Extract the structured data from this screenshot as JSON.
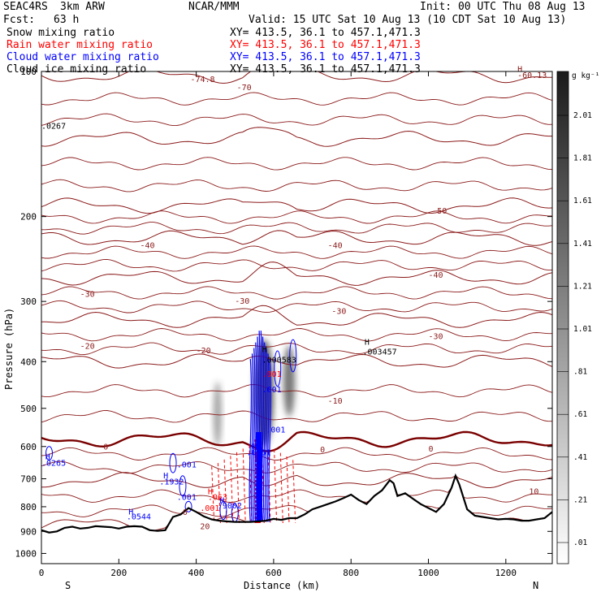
{
  "header": {
    "project": "SEAC4RS",
    "model": "3km ARW",
    "center": "NCAR/MMM",
    "init": "Init: 00 UTC Thu 08 Aug 13",
    "fcst_label": "Fcst:",
    "fcst_value": "63 h",
    "valid": "Valid: 15 UTC Sat 10 Aug 13 (10 CDT Sat 10 Aug 13)"
  },
  "fields": [
    {
      "name": "Snow mixing ratio",
      "xy": "XY= 413.5, 36.1 to 457.1,471.3",
      "color": "#000000"
    },
    {
      "name": "Rain water mixing ratio",
      "xy": "XY= 413.5, 36.1 to 457.1,471.3",
      "color": "#ff0000"
    },
    {
      "name": "Cloud water mixing ratio",
      "xy": "XY= 413.5, 36.1 to 457.1,471.3",
      "color": "#0000ff"
    },
    {
      "name": "Cloud ice mixing ratio",
      "xy": "XY= 413.5, 36.1 to 457.1,471.3",
      "color": "#000000"
    }
  ],
  "colorbar": {
    "unit": "g kg⁻¹",
    "ticks": [
      "2.01",
      "1.81",
      "1.61",
      "1.41",
      "1.21",
      "1.01",
      ".81",
      ".61",
      ".41",
      ".21",
      ".01"
    ]
  },
  "chart_data": {
    "type": "cross-section",
    "xlabel": "Distance (km)",
    "ylabel": "Pressure (hPa)",
    "xlim": [
      0,
      1320
    ],
    "ylim": [
      1050,
      100
    ],
    "y_scale": "log",
    "x_ticks": [
      "0",
      "200",
      "400",
      "600",
      "800",
      "1000",
      "1200"
    ],
    "x_tick_values": [
      0,
      200,
      400,
      600,
      800,
      1000,
      1200
    ],
    "y_ticks": [
      "100",
      "200",
      "300",
      "400",
      "500",
      "600",
      "700",
      "800",
      "900",
      "1000"
    ],
    "y_tick_values": [
      100,
      200,
      300,
      400,
      500,
      600,
      700,
      800,
      900,
      1000
    ],
    "end_labels": {
      "left": "S",
      "right": "N"
    },
    "temperature_colors": {
      "line": "#8b1a1a",
      "zero": "#7a0000"
    },
    "temperature_levels": [
      {
        "t": -70,
        "p": 102
      },
      {
        "t": -60,
        "p": 138
      },
      {
        "t": -50,
        "p": 190
      },
      {
        "t": -40,
        "p": 222
      },
      {
        "t": -30,
        "p": 268
      },
      {
        "t": -20,
        "p": 328
      },
      {
        "t": -10,
        "p": 400
      },
      {
        "t": 0,
        "p": 580
      },
      {
        "t": 10,
        "p": 705
      },
      {
        "t": 20,
        "p": 872
      }
    ],
    "temperature_labels": [
      {
        "text": "-74.8",
        "x": 385,
        "p": 104
      },
      {
        "text": "-70",
        "x": 505,
        "p": 108
      },
      {
        "text": "-60.13",
        "x": 1230,
        "p": 102
      },
      {
        "text": "-50",
        "x": 1010,
        "p": 195
      },
      {
        "text": "-40",
        "x": 255,
        "p": 230
      },
      {
        "text": "-40",
        "x": 740,
        "p": 230
      },
      {
        "text": "-40",
        "x": 1000,
        "p": 265
      },
      {
        "text": "-30",
        "x": 100,
        "p": 290
      },
      {
        "text": "-30",
        "x": 500,
        "p": 300
      },
      {
        "text": "-30",
        "x": 750,
        "p": 315
      },
      {
        "text": "-30",
        "x": 1000,
        "p": 355
      },
      {
        "text": "-20",
        "x": 100,
        "p": 372
      },
      {
        "text": "-20",
        "x": 400,
        "p": 380
      },
      {
        "text": "-10",
        "x": 740,
        "p": 483
      },
      {
        "text": "0",
        "x": 160,
        "p": 602
      },
      {
        "text": "0",
        "x": 720,
        "p": 610
      },
      {
        "text": "0",
        "x": 1000,
        "p": 608
      },
      {
        "text": "10",
        "x": 1260,
        "p": 745
      },
      {
        "text": "0",
        "x": 365,
        "p": 822
      },
      {
        "text": "20",
        "x": 410,
        "p": 880
      }
    ],
    "annotations": [
      {
        "text": "H",
        "x": 1230,
        "p": 99,
        "color": "#8b1a1a"
      },
      {
        "text": ".0267",
        "x": 0,
        "p": 130,
        "color": "#000000"
      },
      {
        "text": "H",
        "x": 835,
        "p": 365,
        "color": "#000000"
      },
      {
        "text": ".003457",
        "x": 830,
        "p": 382,
        "color": "#000000"
      },
      {
        "text": "H",
        "x": 570,
        "p": 378,
        "color": "#000000"
      },
      {
        "text": ".000583",
        "x": 570,
        "p": 397,
        "color": "#000000"
      },
      {
        "text": ".001",
        "x": 570,
        "p": 425,
        "color": "#ff0000"
      },
      {
        "text": ".001",
        "x": 570,
        "p": 458,
        "color": "#0000ff"
      },
      {
        "text": ".001",
        "x": 580,
        "p": 555,
        "color": "#0000ff"
      },
      {
        "text": "H",
        "x": 545,
        "p": 601,
        "color": "#0000ff"
      },
      {
        "text": ".6351",
        "x": 530,
        "p": 618,
        "color": "#0000ff"
      },
      {
        "text": "H",
        "x": 10,
        "p": 630,
        "color": "#0000ff"
      },
      {
        "text": ".0265",
        "x": 0,
        "p": 650,
        "color": "#0000ff"
      },
      {
        "text": ".001",
        "x": 350,
        "p": 655,
        "color": "#0000ff"
      },
      {
        "text": "H",
        "x": 315,
        "p": 690,
        "color": "#0000ff"
      },
      {
        "text": ".1932",
        "x": 305,
        "p": 711,
        "color": "#0000ff"
      },
      {
        "text": ".001",
        "x": 350,
        "p": 765,
        "color": "#0000ff"
      },
      {
        "text": "H",
        "x": 430,
        "p": 745,
        "color": "#ff0000"
      },
      {
        "text": ".063",
        "x": 430,
        "p": 765,
        "color": "#ff0000"
      },
      {
        "text": "H",
        "x": 460,
        "p": 778,
        "color": "#0000ff"
      },
      {
        "text": ".9002",
        "x": 455,
        "p": 797,
        "color": "#0000ff"
      },
      {
        "text": ".001",
        "x": 410,
        "p": 807,
        "color": "#ff0000"
      },
      {
        "text": "H",
        "x": 225,
        "p": 820,
        "color": "#0000ff"
      },
      {
        "text": ".0544",
        "x": 220,
        "p": 840,
        "color": "#0000ff"
      }
    ],
    "terrain": {
      "x": [
        0,
        20,
        40,
        60,
        80,
        100,
        120,
        140,
        160,
        180,
        200,
        220,
        240,
        260,
        280,
        300,
        320,
        340,
        360,
        380,
        400,
        420,
        440,
        460,
        480,
        500,
        520,
        540,
        560,
        580,
        600,
        620,
        640,
        660,
        680,
        700,
        720,
        740,
        760,
        780,
        800,
        820,
        840,
        860,
        880,
        900,
        910,
        920,
        940,
        960,
        980,
        1000,
        1020,
        1040,
        1060,
        1070,
        1080,
        1100,
        1120,
        1140,
        1160,
        1180,
        1200,
        1220,
        1240,
        1260,
        1280,
        1300,
        1320
      ],
      "p": [
        895,
        905,
        900,
        885,
        880,
        888,
        885,
        878,
        880,
        882,
        888,
        880,
        878,
        880,
        895,
        898,
        895,
        840,
        830,
        805,
        820,
        838,
        850,
        855,
        858,
        860,
        860,
        860,
        858,
        855,
        848,
        852,
        845,
        845,
        830,
        810,
        800,
        790,
        780,
        768,
        755,
        775,
        790,
        760,
        740,
        705,
        715,
        760,
        750,
        770,
        790,
        805,
        820,
        790,
        730,
        690,
        720,
        810,
        835,
        840,
        845,
        850,
        848,
        850,
        855,
        855,
        850,
        845,
        820
      ]
    },
    "shading": [
      {
        "x": 455,
        "p_top": 440,
        "p_bot": 600,
        "width_km": 20,
        "intensity": 0.5
      },
      {
        "x": 575,
        "p_top": 360,
        "p_bot": 600,
        "width_km": 50,
        "intensity": 0.85
      },
      {
        "x": 640,
        "p_top": 370,
        "p_bot": 520,
        "width_km": 30,
        "intensity": 0.7
      }
    ],
    "rain_region": {
      "x_min": 440,
      "x_max": 650,
      "p_top": 580,
      "p_bot": 865,
      "peak_x": 560
    },
    "cloud_region": {
      "x_min": 540,
      "x_max": 590,
      "p_top": 340,
      "p_bot": 860
    }
  }
}
